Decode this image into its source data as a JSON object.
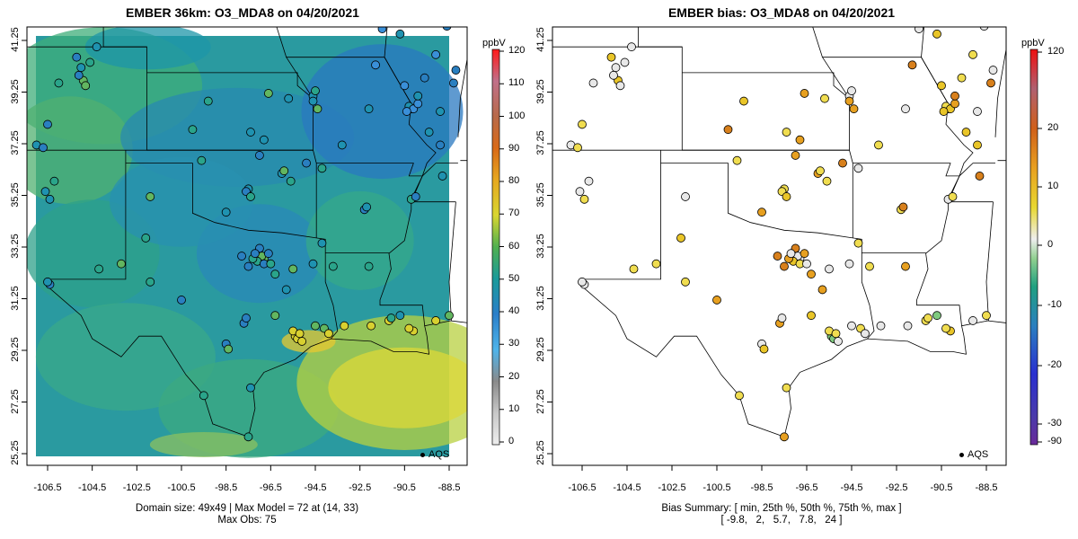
{
  "left_panel": {
    "title": "EMBER 36km: O3_MDA8 on 04/20/2021",
    "unit": "ppbV",
    "colorbar_ticks": [
      "0",
      "10",
      "20",
      "30",
      "40",
      "50",
      "60",
      "70",
      "80",
      "90",
      "100",
      "110",
      "120"
    ],
    "caption_line1": "Domain size: 49x49 | Max Model = 72 at (14, 33)",
    "caption_line2": "Max Obs: 75",
    "legend_label": "AQS"
  },
  "right_panel": {
    "title": "EMBER bias: O3_MDA8 on 04/20/2021",
    "unit": "ppbV",
    "colorbar_ticks": [
      "120",
      "20",
      "10",
      "0",
      "-10",
      "-20",
      "-30",
      "-90"
    ],
    "caption_line1": "Bias Summary: [ min, 25th %, 50th %, 75th %, max ]",
    "caption_line2": "[ -9.8,   2,   5.7,   7.8,   24 ]",
    "legend_label": "AQS"
  },
  "x_ticks": [
    "-106.5",
    "-104.5",
    "-102.5",
    "-100.5",
    "-98.5",
    "-96.5",
    "-94.5",
    "-92.5",
    "-90.5",
    "-88.5"
  ],
  "y_ticks": [
    "25.25",
    "27.25",
    "29.25",
    "31.25",
    "33.25",
    "35.25",
    "37.25",
    "39.25",
    "41.25"
  ],
  "chart_data": {
    "type": "map",
    "projection": "lon-lat",
    "xlim": [
      -107.3,
      -88.0
    ],
    "ylim": [
      25.25,
      41.6
    ],
    "bias_summary": {
      "min": -9.8,
      "p25": 2,
      "p50": 5.7,
      "p75": 7.8,
      "max": 24
    },
    "max_model": 72,
    "max_model_cell": [
      14,
      33
    ],
    "max_obs": 75,
    "domain_size": "49x49"
  }
}
